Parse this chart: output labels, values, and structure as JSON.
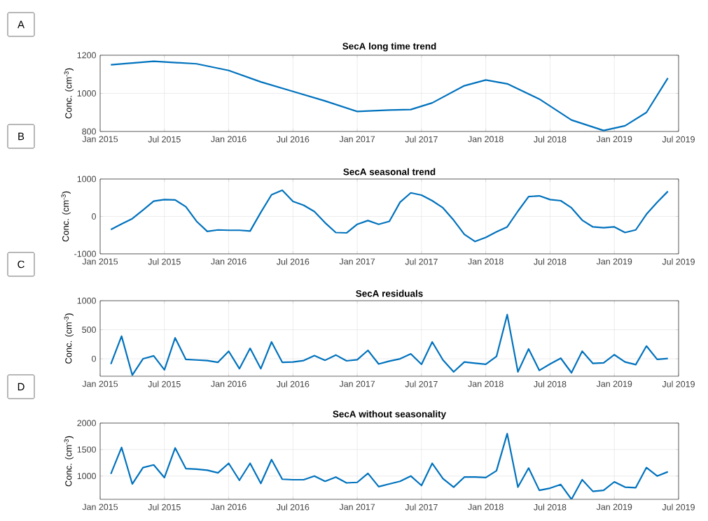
{
  "chart_data": [
    {
      "type": "line",
      "title": "SecA long time trend",
      "ylabel": "Conc. (cm$^{-3}$)",
      "annotations": [
        "A"
      ],
      "grid": true,
      "color": "#0072bd",
      "xlim": [
        "2015-01",
        "2019-07"
      ],
      "ylim": [
        800,
        1200
      ],
      "yticks": [
        800,
        1000,
        1200
      ],
      "xticks": [
        {
          "value": "2015-01",
          "label": "Jan 2015"
        },
        {
          "value": "2015-07",
          "label": "Jul 2015"
        },
        {
          "value": "2016-01",
          "label": "Jan 2016"
        },
        {
          "value": "2016-07",
          "label": "Jul 2016"
        },
        {
          "value": "2017-01",
          "label": "Jan 2017"
        },
        {
          "value": "2017-07",
          "label": "Jul 2017"
        },
        {
          "value": "2018-01",
          "label": "Jan 2018"
        },
        {
          "value": "2018-07",
          "label": "Jul 2018"
        },
        {
          "value": "2019-01",
          "label": "Jan 2019"
        },
        {
          "value": "2019-07",
          "label": "Jul 2019"
        }
      ],
      "x": [
        "2015-02",
        "2015-06",
        "2015-10",
        "2016-01",
        "2016-04",
        "2016-07",
        "2016-10",
        "2017-01",
        "2017-04",
        "2017-06",
        "2017-08",
        "2017-11",
        "2018-01",
        "2018-03",
        "2018-06",
        "2018-09",
        "2018-12",
        "2019-02",
        "2019-04",
        "2019-06"
      ],
      "values": [
        1150,
        1168,
        1155,
        1120,
        1060,
        1010,
        960,
        905,
        912,
        915,
        950,
        1040,
        1070,
        1050,
        970,
        860,
        805,
        830,
        900,
        1080
      ]
    },
    {
      "type": "line",
      "title": "SecA seasonal trend",
      "ylabel": "Conc. (cm$^{-3}$)",
      "annotations": [
        "B"
      ],
      "grid": true,
      "color": "#0072bd",
      "xlim": [
        "2015-01",
        "2019-07"
      ],
      "ylim": [
        -1000,
        1000
      ],
      "yticks": [
        -1000,
        0,
        1000
      ],
      "xticks": [
        {
          "value": "2015-01",
          "label": "Jan 2015"
        },
        {
          "value": "2015-07",
          "label": "Jul 2015"
        },
        {
          "value": "2016-01",
          "label": "Jan 2016"
        },
        {
          "value": "2016-07",
          "label": "Jul 2016"
        },
        {
          "value": "2017-01",
          "label": "Jan 2017"
        },
        {
          "value": "2017-07",
          "label": "Jul 2017"
        },
        {
          "value": "2018-01",
          "label": "Jan 2018"
        },
        {
          "value": "2018-07",
          "label": "Jul 2018"
        },
        {
          "value": "2019-01",
          "label": "Jan 2019"
        },
        {
          "value": "2019-07",
          "label": "Jul 2019"
        }
      ],
      "x": [
        "2015-02",
        "2015-03",
        "2015-04",
        "2015-05",
        "2015-06",
        "2015-07",
        "2015-08",
        "2015-09",
        "2015-10",
        "2015-11",
        "2015-12",
        "2016-01",
        "2016-02",
        "2016-03",
        "2016-04",
        "2016-05",
        "2016-06",
        "2016-07",
        "2016-08",
        "2016-09",
        "2016-10",
        "2016-11",
        "2016-12",
        "2017-01",
        "2017-02",
        "2017-03",
        "2017-04",
        "2017-05",
        "2017-06",
        "2017-07",
        "2017-08",
        "2017-09",
        "2017-10",
        "2017-11",
        "2017-12",
        "2018-01",
        "2018-02",
        "2018-03",
        "2018-04",
        "2018-05",
        "2018-06",
        "2018-07",
        "2018-08",
        "2018-09",
        "2018-10",
        "2018-11",
        "2018-12",
        "2019-01",
        "2019-02",
        "2019-03",
        "2019-04",
        "2019-05",
        "2019-06"
      ],
      "values": [
        -350,
        -200,
        -60,
        170,
        410,
        450,
        440,
        260,
        -130,
        -400,
        -360,
        -370,
        -370,
        -390,
        110,
        580,
        700,
        400,
        300,
        130,
        -170,
        -430,
        -440,
        -210,
        -110,
        -210,
        -130,
        380,
        630,
        570,
        420,
        230,
        -100,
        -480,
        -670,
        -560,
        -410,
        -280,
        140,
        530,
        550,
        450,
        420,
        230,
        -100,
        -280,
        -300,
        -280,
        -430,
        -360,
        60,
        380,
        670
      ]
    },
    {
      "type": "line",
      "title": "SecA residuals",
      "ylabel": "Conc. (cm$^{-3}$)",
      "annotations": [
        "C"
      ],
      "grid": true,
      "color": "#0072bd",
      "xlim": [
        "2015-01",
        "2019-07"
      ],
      "ylim": [
        -300,
        1000
      ],
      "yticks": [
        0,
        500,
        1000
      ],
      "xticks": [
        {
          "value": "2015-01",
          "label": "Jan 2015"
        },
        {
          "value": "2015-07",
          "label": "Jul 2015"
        },
        {
          "value": "2016-01",
          "label": "Jan 2016"
        },
        {
          "value": "2016-07",
          "label": "Jul 2016"
        },
        {
          "value": "2017-01",
          "label": "Jan 2017"
        },
        {
          "value": "2017-07",
          "label": "Jul 2017"
        },
        {
          "value": "2018-01",
          "label": "Jan 2018"
        },
        {
          "value": "2018-07",
          "label": "Jul 2018"
        },
        {
          "value": "2019-01",
          "label": "Jan 2019"
        },
        {
          "value": "2019-07",
          "label": "Jul 2019"
        }
      ],
      "x": [
        "2015-02",
        "2015-03",
        "2015-04",
        "2015-05",
        "2015-06",
        "2015-07",
        "2015-08",
        "2015-09",
        "2015-10",
        "2015-11",
        "2015-12",
        "2016-01",
        "2016-02",
        "2016-03",
        "2016-04",
        "2016-05",
        "2016-06",
        "2016-07",
        "2016-08",
        "2016-09",
        "2016-10",
        "2016-11",
        "2016-12",
        "2017-01",
        "2017-02",
        "2017-03",
        "2017-04",
        "2017-05",
        "2017-06",
        "2017-07",
        "2017-08",
        "2017-09",
        "2017-10",
        "2017-11",
        "2017-12",
        "2018-01",
        "2018-02",
        "2018-03",
        "2018-04",
        "2018-05",
        "2018-06",
        "2018-07",
        "2018-08",
        "2018-09",
        "2018-10",
        "2018-11",
        "2018-12",
        "2019-01",
        "2019-02",
        "2019-03",
        "2019-04",
        "2019-05",
        "2019-06"
      ],
      "values": [
        -90,
        390,
        -280,
        0,
        50,
        -190,
        360,
        -10,
        -20,
        -30,
        -60,
        130,
        -170,
        180,
        -170,
        290,
        -60,
        -55,
        -30,
        55,
        -25,
        65,
        -35,
        -15,
        145,
        -90,
        -40,
        0,
        85,
        -95,
        290,
        -20,
        -225,
        -55,
        -75,
        -95,
        40,
        760,
        -225,
        170,
        -200,
        -90,
        10,
        -240,
        130,
        -80,
        -70,
        70,
        -55,
        -100,
        220,
        -10,
        5
      ]
    },
    {
      "type": "line",
      "title": "SecA without seasonality",
      "ylabel": "Conc. (cm$^{-3}$)",
      "annotations": [
        "D"
      ],
      "grid": true,
      "color": "#0072bd",
      "xlim": [
        "2015-01",
        "2019-07"
      ],
      "ylim": [
        560,
        2000
      ],
      "yticks": [
        1000,
        1500,
        2000
      ],
      "xticks": [
        {
          "value": "2015-01",
          "label": "Jan 2015"
        },
        {
          "value": "2015-07",
          "label": "Jul 2015"
        },
        {
          "value": "2016-01",
          "label": "Jan 2016"
        },
        {
          "value": "2016-07",
          "label": "Jul 2016"
        },
        {
          "value": "2017-01",
          "label": "Jan 2017"
        },
        {
          "value": "2017-07",
          "label": "Jul 2017"
        },
        {
          "value": "2018-01",
          "label": "Jan 2018"
        },
        {
          "value": "2018-07",
          "label": "Jul 2018"
        },
        {
          "value": "2019-01",
          "label": "Jan 2019"
        },
        {
          "value": "2019-07",
          "label": "Jul 2019"
        }
      ],
      "x": [
        "2015-02",
        "2015-03",
        "2015-04",
        "2015-05",
        "2015-06",
        "2015-07",
        "2015-08",
        "2015-09",
        "2015-10",
        "2015-11",
        "2015-12",
        "2016-01",
        "2016-02",
        "2016-03",
        "2016-04",
        "2016-05",
        "2016-06",
        "2016-07",
        "2016-08",
        "2016-09",
        "2016-10",
        "2016-11",
        "2016-12",
        "2017-01",
        "2017-02",
        "2017-03",
        "2017-04",
        "2017-05",
        "2017-06",
        "2017-07",
        "2017-08",
        "2017-09",
        "2017-10",
        "2017-11",
        "2017-12",
        "2018-01",
        "2018-02",
        "2018-03",
        "2018-04",
        "2018-05",
        "2018-06",
        "2018-07",
        "2018-08",
        "2018-09",
        "2018-10",
        "2018-11",
        "2018-12",
        "2019-01",
        "2019-02",
        "2019-03",
        "2019-04",
        "2019-05",
        "2019-06"
      ],
      "values": [
        1040,
        1540,
        850,
        1160,
        1210,
        970,
        1530,
        1140,
        1130,
        1110,
        1060,
        1240,
        920,
        1240,
        860,
        1310,
        940,
        930,
        930,
        1000,
        900,
        980,
        870,
        880,
        1050,
        800,
        850,
        900,
        1000,
        820,
        1240,
        950,
        790,
        980,
        980,
        970,
        1100,
        1800,
        790,
        1150,
        730,
        770,
        840,
        560,
        930,
        710,
        730,
        890,
        790,
        780,
        1160,
        1000,
        1080
      ]
    }
  ]
}
